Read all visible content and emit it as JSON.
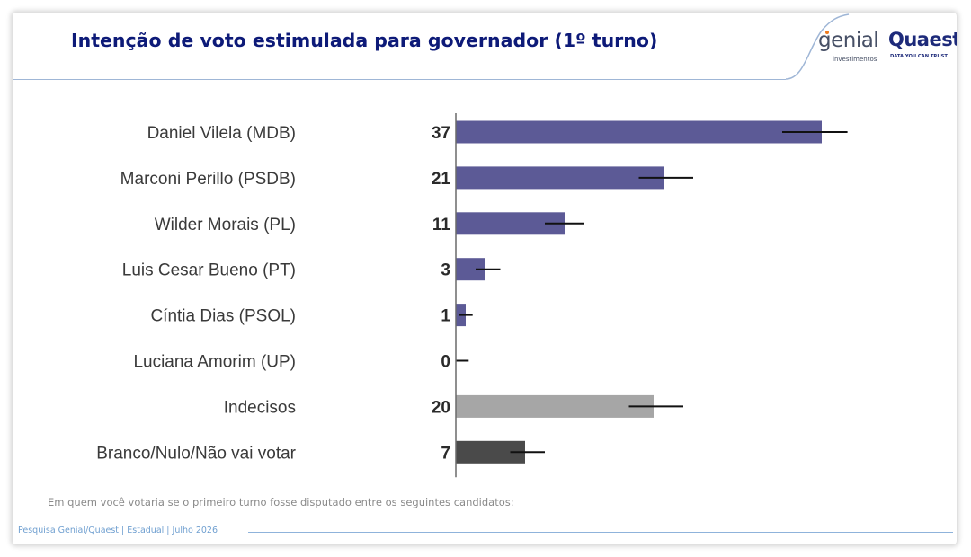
{
  "header": {
    "title": "Intenção de voto estimulada para governador (1º turno)",
    "logo_genial_word": "genial",
    "logo_genial_sub": "investimentos",
    "logo_quaest_word": "Quaest",
    "logo_quaest_sub": "DATA YOU CAN TRUST"
  },
  "colors": {
    "title": "#0d1a78",
    "candidate_bar": "#5c5a96",
    "undecided_bar": "#a6a6a6",
    "blank_bar": "#4a4a4a",
    "error_bar": "#111111",
    "footer": "#6f9fd0"
  },
  "chart_data": {
    "type": "bar",
    "orientation": "horizontal",
    "title": "Intenção de voto estimulada para governador (1º turno)",
    "categories": [
      "Daniel Vilela (MDB)",
      "Marconi Perillo (PSDB)",
      "Wilder Morais (PL)",
      "Luis Cesar Bueno (PT)",
      "Cíntia Dias (PSOL)",
      "Luciana Amorim (UP)",
      "Indecisos",
      "Branco/Nulo/Não vai votar"
    ],
    "values": [
      37,
      21,
      11,
      3,
      1,
      0,
      20,
      7
    ],
    "error_bars": [
      [
        33,
        39.6
      ],
      [
        18.5,
        24
      ],
      [
        9,
        13
      ],
      [
        2,
        4.5
      ],
      [
        0.3,
        1.7
      ],
      [
        0,
        1.3
      ],
      [
        17.5,
        23
      ],
      [
        5.5,
        9
      ]
    ],
    "bar_groups": [
      "candidate",
      "candidate",
      "candidate",
      "candidate",
      "candidate",
      "candidate",
      "undecided",
      "blank"
    ],
    "xlim": [
      0,
      40
    ],
    "xlabel": "",
    "ylabel": "",
    "grid": false,
    "legend": "none"
  },
  "note": "Em quem você votaria se o primeiro turno fosse disputado entre os seguintes candidatos:",
  "footer": "Pesquisa Genial/Quaest | Estadual | Julho 2026"
}
